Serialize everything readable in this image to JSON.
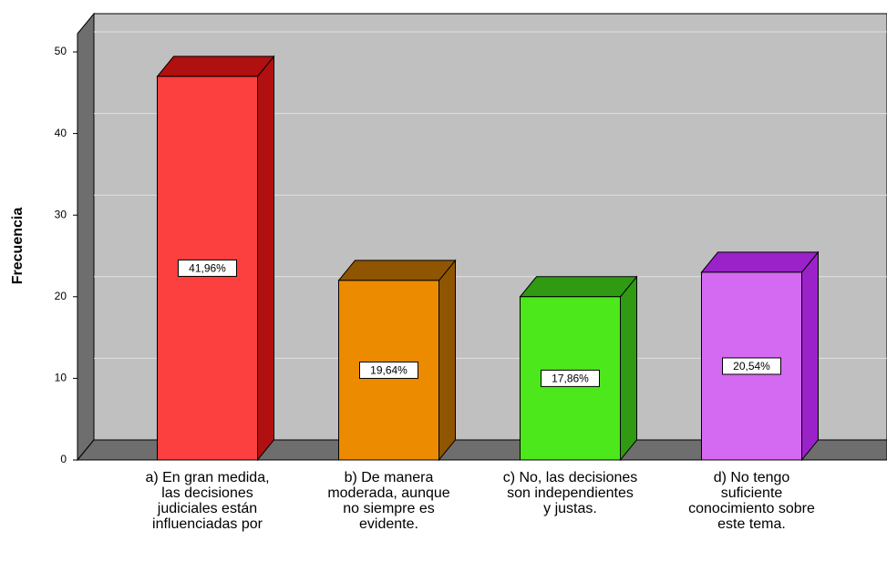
{
  "chart_data": {
    "type": "bar3d",
    "y_label": "Frecuencia",
    "categories": [
      "a) En gran medida, las decisiones judiciales están influenciadas por",
      "b) De manera moderada, aunque no siempre es evidente.",
      "c) No, las decisiones son independientes y justas.",
      "d) No tengo suficiente conocimiento sobre este tema."
    ],
    "values": [
      47,
      22,
      20,
      23
    ],
    "data_labels": [
      "41,96%",
      "19,64%",
      "17,86%",
      "20,54%"
    ],
    "colors": [
      "#fc3f3f",
      "#ec8b00",
      "#4ce81c",
      "#d56af2"
    ],
    "side_colors": [
      "#b01010",
      "#8f5500",
      "#2f9a12",
      "#9a22c8"
    ],
    "ylim": [
      0,
      50
    ],
    "yticks": [
      0,
      10,
      20,
      30,
      40,
      50
    ],
    "grid": true
  }
}
